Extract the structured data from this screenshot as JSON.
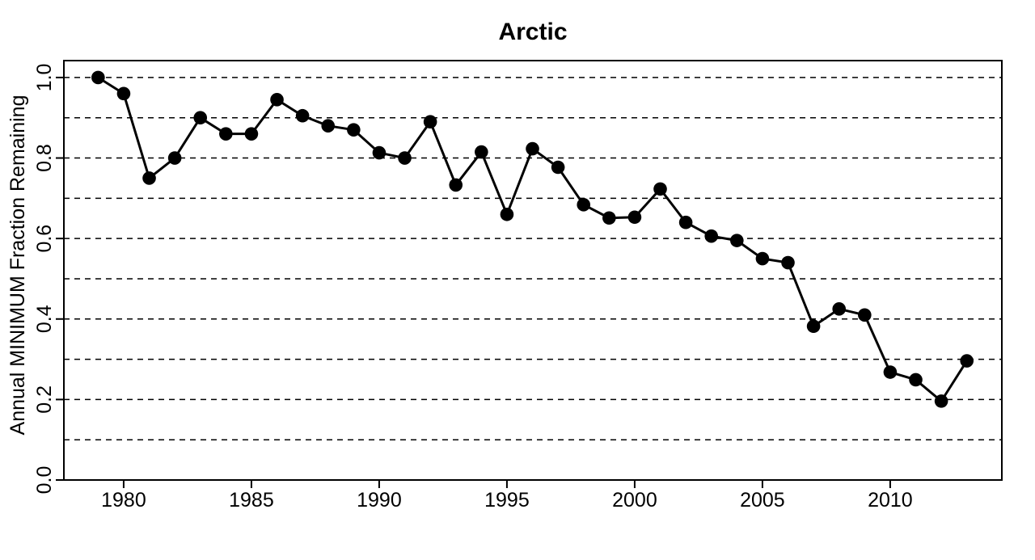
{
  "chart_data": {
    "type": "line",
    "title": "Arctic",
    "xlabel": "",
    "ylabel": "Annual MINIMUM Fraction Remaining",
    "legend": "none",
    "grid_style": "dashed-horizontal",
    "marker": "filled-circle",
    "x": [
      1979,
      1980,
      1981,
      1982,
      1983,
      1984,
      1985,
      1986,
      1987,
      1988,
      1989,
      1990,
      1991,
      1992,
      1993,
      1994,
      1995,
      1996,
      1997,
      1998,
      1999,
      2000,
      2001,
      2002,
      2003,
      2004,
      2005,
      2006,
      2007,
      2008,
      2009,
      2010,
      2011,
      2012,
      2013
    ],
    "values": [
      1.0,
      0.96,
      0.75,
      0.8,
      0.9,
      0.86,
      0.86,
      0.945,
      0.905,
      0.88,
      0.87,
      0.813,
      0.8,
      0.89,
      0.733,
      0.815,
      0.66,
      0.823,
      0.777,
      0.684,
      0.651,
      0.653,
      0.723,
      0.64,
      0.606,
      0.595,
      0.55,
      0.54,
      0.382,
      0.425,
      0.41,
      0.268,
      0.249,
      0.196,
      0.296
    ],
    "x_ticks": [
      {
        "value": 1980,
        "label": "1980"
      },
      {
        "value": 1985,
        "label": "1985"
      },
      {
        "value": 1990,
        "label": "1990"
      },
      {
        "value": 1995,
        "label": "1995"
      },
      {
        "value": 2000,
        "label": "2000"
      },
      {
        "value": 2005,
        "label": "2005"
      },
      {
        "value": 2010,
        "label": "2010"
      }
    ],
    "y_ticks": [
      {
        "value": 0.0,
        "label": "0.0"
      },
      {
        "value": 0.2,
        "label": "0.2"
      },
      {
        "value": 0.4,
        "label": "0.4"
      },
      {
        "value": 0.6,
        "label": "0.6"
      },
      {
        "value": 0.8,
        "label": "0.8"
      },
      {
        "value": 1.0,
        "label": "1.0"
      }
    ],
    "gridlines_y": [
      0.1,
      0.2,
      0.3,
      0.4,
      0.5,
      0.6,
      0.7,
      0.8,
      0.9,
      1.0
    ],
    "x_range": [
      1977.66,
      2014.37
    ],
    "y_range": [
      0,
      1.042
    ],
    "colors": {
      "foreground": "#000000",
      "background": "#ffffff"
    }
  }
}
